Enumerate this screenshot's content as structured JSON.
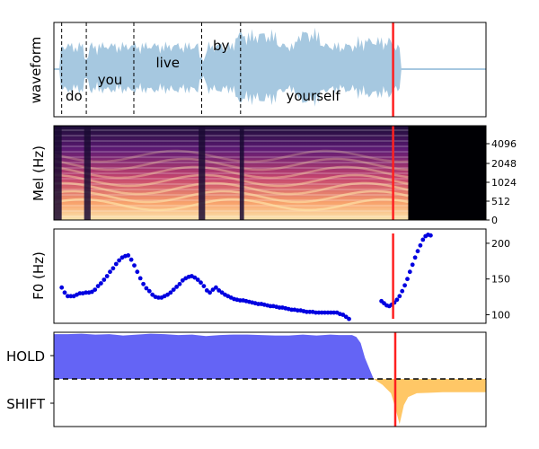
{
  "colors": {
    "waveform": "#a6c8e0",
    "cursor": "#ff2020",
    "f0": "#0000e0",
    "hold": "#6464f5",
    "shift": "#ffc766",
    "divider": "#000000"
  },
  "chart_data": [
    {
      "type": "area",
      "panel": "waveform",
      "ylabel": "waveform",
      "x_range": [
        0,
        1
      ],
      "words": [
        {
          "text": "do",
          "start": 0.018,
          "end": 0.075
        },
        {
          "text": "you",
          "start": 0.075,
          "end": 0.185
        },
        {
          "text": "live",
          "start": 0.185,
          "end": 0.342
        },
        {
          "text": "by",
          "start": 0.342,
          "end": 0.432
        },
        {
          "text": "yourself",
          "start": 0.432,
          "end": 0.785
        }
      ],
      "cursor_x": 0.785,
      "grid": false
    },
    {
      "type": "heatmap",
      "panel": "mel",
      "ylabel": "Mel (Hz)",
      "ytick_labels": [
        "0",
        "512",
        "1024",
        "2048",
        "4096"
      ],
      "ylim": [
        0,
        8000
      ],
      "cursor_x": 0.785
    },
    {
      "type": "scatter",
      "panel": "f0",
      "ylabel": "F0 (Hz)",
      "yticks": [
        100,
        150,
        200
      ],
      "ylim": [
        88,
        220
      ],
      "x_range": [
        0,
        1
      ],
      "series": [
        {
          "x": [
            0.018,
            0.025,
            0.032,
            0.039,
            0.046,
            0.053,
            0.06,
            0.067,
            0.074,
            0.081,
            0.088,
            0.095,
            0.102,
            0.109,
            0.116,
            0.123,
            0.13,
            0.137,
            0.144,
            0.151,
            0.158,
            0.165,
            0.172,
            0.179,
            0.186,
            0.193,
            0.2,
            0.207,
            0.214,
            0.221,
            0.228,
            0.235,
            0.242,
            0.249,
            0.256,
            0.263,
            0.27,
            0.277,
            0.284,
            0.291,
            0.298,
            0.305,
            0.312,
            0.319,
            0.326,
            0.333,
            0.34,
            0.347,
            0.354,
            0.361,
            0.368,
            0.375,
            0.382,
            0.389,
            0.396,
            0.403,
            0.41,
            0.417,
            0.424,
            0.431,
            0.438,
            0.445,
            0.452,
            0.459,
            0.466,
            0.473,
            0.48,
            0.487,
            0.494,
            0.501,
            0.508,
            0.515,
            0.522,
            0.529,
            0.536,
            0.543,
            0.55,
            0.557,
            0.564,
            0.571,
            0.578,
            0.585,
            0.592,
            0.599,
            0.606,
            0.613,
            0.62,
            0.627,
            0.634,
            0.641,
            0.648,
            0.655,
            0.662,
            0.669,
            0.676,
            0.683
          ],
          "y": [
            138,
            131,
            126,
            126,
            126,
            128,
            130,
            130,
            131,
            131,
            132,
            135,
            140,
            144,
            149,
            154,
            160,
            165,
            171,
            176,
            180,
            182,
            183,
            177,
            169,
            160,
            151,
            143,
            137,
            133,
            128,
            125,
            124,
            124,
            126,
            128,
            131,
            135,
            139,
            143,
            148,
            151,
            153,
            154,
            152,
            149,
            145,
            140,
            134,
            131,
            135,
            138,
            134,
            131,
            128,
            126,
            124,
            122,
            121,
            120,
            120,
            119,
            118,
            117,
            116,
            115,
            115,
            114,
            113,
            112,
            112,
            111,
            110,
            110,
            109,
            108,
            107,
            107,
            106,
            106,
            105,
            104,
            104,
            104,
            103,
            103,
            103,
            103,
            103,
            103,
            103,
            103,
            101,
            100,
            97,
            94
          ],
          "color": "#0000e0"
        },
        {
          "x": [
            0.758,
            0.764,
            0.77,
            0.776,
            0.782,
            0.788,
            0.794,
            0.8,
            0.806,
            0.812,
            0.818,
            0.824,
            0.83,
            0.836,
            0.842,
            0.848,
            0.854,
            0.86,
            0.866,
            0.872
          ],
          "y": [
            119,
            116,
            113,
            112,
            114,
            117,
            121,
            126,
            133,
            141,
            150,
            160,
            170,
            180,
            189,
            197,
            205,
            210,
            212,
            211
          ],
          "color": "#0000e0"
        }
      ],
      "cursor_x": 0.785
    },
    {
      "type": "area",
      "panel": "turn",
      "ytick_labels": [
        "HOLD",
        "SHIFT"
      ],
      "ylim": [
        -1,
        1
      ],
      "x": [
        0.0,
        0.032,
        0.064,
        0.096,
        0.128,
        0.16,
        0.192,
        0.224,
        0.256,
        0.288,
        0.32,
        0.352,
        0.384,
        0.416,
        0.448,
        0.48,
        0.512,
        0.544,
        0.576,
        0.608,
        0.64,
        0.66,
        0.672,
        0.69,
        0.7,
        0.71,
        0.72,
        0.74,
        0.76,
        0.78,
        0.79,
        0.8,
        0.81,
        0.82,
        0.84,
        0.87,
        0.9,
        0.94,
        0.97,
        1.0
      ],
      "values": [
        0.96,
        0.96,
        0.97,
        0.95,
        0.96,
        0.93,
        0.95,
        0.97,
        0.96,
        0.94,
        0.95,
        0.92,
        0.94,
        0.95,
        0.95,
        0.94,
        0.93,
        0.93,
        0.95,
        0.93,
        0.95,
        0.94,
        0.94,
        0.94,
        0.9,
        0.77,
        0.45,
        0.0,
        -0.12,
        -0.3,
        -0.6,
        -0.95,
        -0.55,
        -0.38,
        -0.3,
        -0.29,
        -0.28,
        -0.28,
        -0.28,
        -0.28
      ],
      "colors": {
        "positive": "#6464f5",
        "negative": "#ffc766"
      },
      "divider_y": 0,
      "cursor_x": 0.79
    }
  ]
}
